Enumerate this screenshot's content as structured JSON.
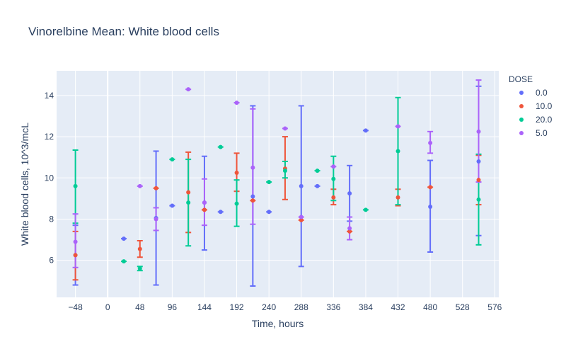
{
  "chart_data": {
    "type": "scatter",
    "title": "Vinorelbine Mean: White blood cells",
    "xlabel": "Time, hours",
    "ylabel": "White blood cells, 10^3/mcL",
    "xlim": [
      -76,
      582
    ],
    "ylim": [
      4.2,
      15.2
    ],
    "x_ticks": [
      -48,
      0,
      48,
      96,
      144,
      192,
      240,
      288,
      336,
      384,
      432,
      480,
      528,
      576
    ],
    "y_ticks": [
      6,
      8,
      10,
      12,
      14
    ],
    "x_tick_labels": [
      "−48",
      "0",
      "48",
      "96",
      "144",
      "192",
      "240",
      "288",
      "336",
      "384",
      "432",
      "480",
      "528",
      "576"
    ],
    "y_tick_labels": [
      "6",
      "8",
      "10",
      "12",
      "14"
    ],
    "grid": true,
    "error_bars": true,
    "legend": {
      "title": "DOSE",
      "position": "right"
    },
    "series": [
      {
        "name": "0.0",
        "color": "#636efa",
        "points": [
          {
            "x": -48,
            "y": 6.25,
            "low": 4.8,
            "high": 7.7
          },
          {
            "x": 24,
            "y": 7.05
          },
          {
            "x": 72,
            "y": 8.05,
            "low": 4.8,
            "high": 11.3
          },
          {
            "x": 96,
            "y": 8.65
          },
          {
            "x": 144,
            "y": 8.8,
            "low": 6.5,
            "high": 11.05
          },
          {
            "x": 168,
            "y": 8.35
          },
          {
            "x": 216,
            "y": 9.1,
            "low": 4.75,
            "high": 13.5
          },
          {
            "x": 240,
            "y": 8.35
          },
          {
            "x": 288,
            "y": 9.6,
            "low": 5.7,
            "high": 13.5
          },
          {
            "x": 312,
            "y": 9.6
          },
          {
            "x": 360,
            "y": 9.25,
            "low": 7.9,
            "high": 10.6
          },
          {
            "x": 384,
            "y": 12.3
          },
          {
            "x": 480,
            "y": 8.6,
            "low": 6.4,
            "high": 10.85
          },
          {
            "x": 552,
            "y": 10.8,
            "low": 7.2,
            "high": 14.45
          }
        ]
      },
      {
        "name": "10.0",
        "color": "#ef553b",
        "points": [
          {
            "x": -48,
            "y": 6.25,
            "low": 5.05,
            "high": 7.4
          },
          {
            "x": 48,
            "y": 6.55,
            "low": 6.15,
            "high": 6.95
          },
          {
            "x": 72,
            "y": 9.5
          },
          {
            "x": 120,
            "y": 9.3,
            "low": 7.35,
            "high": 11.25
          },
          {
            "x": 144,
            "y": 8.45
          },
          {
            "x": 192,
            "y": 10.25,
            "low": 9.35,
            "high": 11.2
          },
          {
            "x": 216,
            "y": 8.9
          },
          {
            "x": 264,
            "y": 10.45,
            "low": 8.95,
            "high": 12.0
          },
          {
            "x": 288,
            "y": 7.95
          },
          {
            "x": 336,
            "y": 9.05,
            "low": 8.7,
            "high": 9.45
          },
          {
            "x": 360,
            "y": 7.4
          },
          {
            "x": 432,
            "y": 9.05,
            "low": 8.65,
            "high": 9.45
          },
          {
            "x": 480,
            "y": 9.55
          },
          {
            "x": 552,
            "y": 9.9,
            "low": 8.7,
            "high": 11.1
          }
        ]
      },
      {
        "name": "20.0",
        "color": "#00cc96",
        "points": [
          {
            "x": -48,
            "y": 9.6,
            "low": 7.8,
            "high": 11.35
          },
          {
            "x": 24,
            "y": 5.95
          },
          {
            "x": 48,
            "y": 5.6,
            "low": 5.5,
            "high": 5.7
          },
          {
            "x": 96,
            "y": 10.9
          },
          {
            "x": 120,
            "y": 8.8,
            "low": 6.7,
            "high": 10.9
          },
          {
            "x": 168,
            "y": 11.5
          },
          {
            "x": 192,
            "y": 8.75,
            "low": 7.65,
            "high": 9.9
          },
          {
            "x": 240,
            "y": 9.8
          },
          {
            "x": 264,
            "y": 10.35,
            "low": 10.0,
            "high": 10.8
          },
          {
            "x": 312,
            "y": 10.35
          },
          {
            "x": 336,
            "y": 9.95,
            "low": 8.9,
            "high": 11.05
          },
          {
            "x": 384,
            "y": 8.45
          },
          {
            "x": 432,
            "y": 11.3,
            "low": 8.7,
            "high": 13.9
          },
          {
            "x": 552,
            "y": 8.95,
            "low": 6.75,
            "high": 11.15
          }
        ]
      },
      {
        "name": "5.0",
        "color": "#ab63fa",
        "points": [
          {
            "x": -48,
            "y": 6.9,
            "low": 5.65,
            "high": 8.25
          },
          {
            "x": 48,
            "y": 9.6
          },
          {
            "x": 72,
            "y": 8.0,
            "low": 7.45,
            "high": 8.55
          },
          {
            "x": 120,
            "y": 14.3
          },
          {
            "x": 144,
            "y": 8.8,
            "low": 7.7,
            "high": 9.95
          },
          {
            "x": 192,
            "y": 13.65
          },
          {
            "x": 216,
            "y": 10.5,
            "low": 7.75,
            "high": 13.35
          },
          {
            "x": 264,
            "y": 12.4
          },
          {
            "x": 288,
            "y": 8.1
          },
          {
            "x": 336,
            "y": 10.55
          },
          {
            "x": 360,
            "y": 7.55,
            "low": 7.0,
            "high": 8.1
          },
          {
            "x": 432,
            "y": 12.5
          },
          {
            "x": 480,
            "y": 11.7,
            "low": 11.2,
            "high": 12.25
          },
          {
            "x": 552,
            "y": 12.25,
            "low": 9.8,
            "high": 14.75
          }
        ]
      }
    ]
  }
}
